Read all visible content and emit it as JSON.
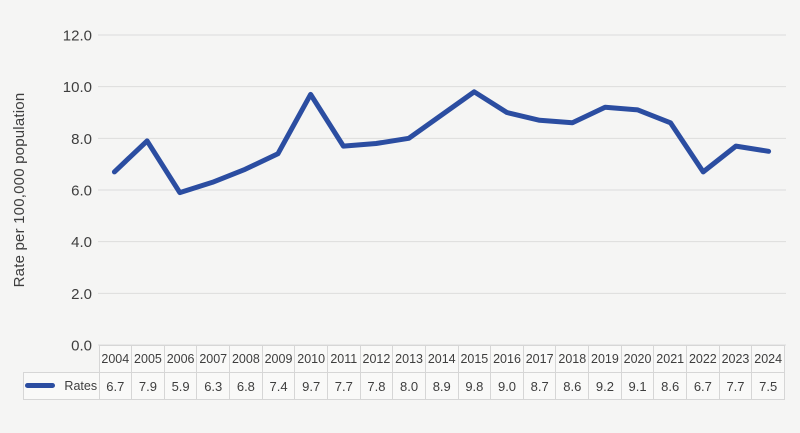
{
  "chart_data": {
    "type": "line",
    "title": "",
    "xlabel": "",
    "ylabel": "Rate per 100,000 population",
    "categories": [
      "2004",
      "2005",
      "2006",
      "2007",
      "2008",
      "2009",
      "2010",
      "2011",
      "2012",
      "2013",
      "2014",
      "2015",
      "2016",
      "2017",
      "2018",
      "2019",
      "2020",
      "2021",
      "2022",
      "2023",
      "2024"
    ],
    "series": [
      {
        "name": "Rates",
        "values": [
          6.7,
          7.9,
          5.9,
          6.3,
          6.8,
          7.4,
          9.7,
          7.7,
          7.8,
          8.0,
          8.9,
          9.8,
          9.0,
          8.7,
          8.6,
          9.2,
          9.1,
          8.6,
          6.7,
          7.7,
          7.5
        ]
      }
    ],
    "ylim": [
      0,
      12
    ],
    "yticks": [
      0,
      2,
      4,
      6,
      8,
      10,
      12
    ],
    "grid": true,
    "legend_position": "table-row-header-left",
    "colors": {
      "line": "#2b4da1",
      "gridline": "#dcdcdc",
      "text": "#3e3e3e",
      "cell_border": "#d6d6d6",
      "cell_background": "#f9f9f8",
      "page_background": "#f5f5f4"
    }
  }
}
